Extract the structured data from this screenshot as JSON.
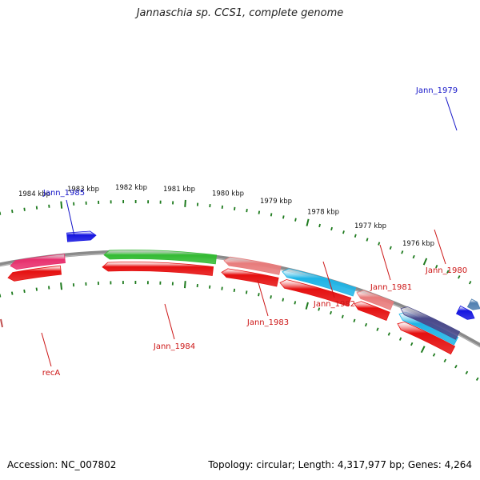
{
  "title": "Jannaschia sp. CCS1, complete genome",
  "footer": {
    "accession": "Accession: NC_007802",
    "topology": "Topology: circular; Length: 4,317,977 bp; Genes: 4,264"
  },
  "colors": {
    "backbone": "#8a8a8a",
    "tick": "#1d7a1d",
    "label_blue": "#1515c8",
    "label_red": "#cc1515",
    "gene_red": "#e51010",
    "gene_green": "#33bb33",
    "gene_pink": "#e8306e",
    "gene_salmon": "#e87c7c",
    "gene_cyan": "#1fb4e6",
    "gene_blue": "#1515e0",
    "gene_navy": "#4a4a8c",
    "gene_steel": "#4f7fb0"
  },
  "kbp_labels": [
    "1976 kbp",
    "1977 kbp",
    "1978 kbp",
    "1979 kbp",
    "1980 kbp",
    "1981 kbp",
    "1982 kbp",
    "1983 kbp",
    "1984 kbp"
  ],
  "gene_labels": [
    "Jann_1979",
    "Jann_1985",
    "Jann_1980",
    "Jann_1981",
    "Jann_1982",
    "Jann_1983",
    "Jann_1984",
    "recA"
  ]
}
